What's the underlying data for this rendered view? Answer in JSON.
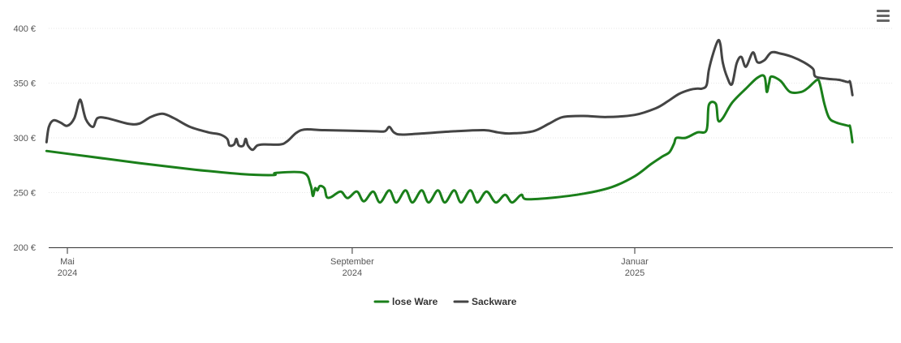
{
  "menu_icon": "hamburger-menu-icon",
  "colors": {
    "lose_ware": "#1a7f1a",
    "sackware": "#444444",
    "grid": "#e6e6e6",
    "axis": "#333333"
  },
  "chart_data": {
    "type": "line",
    "title": "",
    "xlabel": "",
    "ylabel": "",
    "ylim": [
      200,
      400
    ],
    "yticks": [
      {
        "value": 200,
        "label": "200 €"
      },
      {
        "value": 250,
        "label": "250 €"
      },
      {
        "value": 300,
        "label": "300 €"
      },
      {
        "value": 350,
        "label": "350 €"
      },
      {
        "value": 400,
        "label": "400 €"
      }
    ],
    "xlim": [
      "2024-04-22",
      "2025-03-26"
    ],
    "xticks": [
      {
        "date": "2024-05-01",
        "line1": "Mai",
        "line2": "2024"
      },
      {
        "date": "2024-09-01",
        "line1": "September",
        "line2": "2024"
      },
      {
        "date": "2025-01-01",
        "line1": "Januar",
        "line2": "2025"
      }
    ],
    "grid": true,
    "legend_position": "bottom-center",
    "series": [
      {
        "name": "lose Ware",
        "color": "#1a7f1a",
        "points": [
          [
            "2024-04-22",
            288
          ],
          [
            "2024-05-10",
            283
          ],
          [
            "2024-06-01",
            277
          ],
          [
            "2024-06-25",
            271
          ],
          [
            "2024-07-15",
            267
          ],
          [
            "2024-07-29",
            266
          ],
          [
            "2024-07-30",
            268
          ],
          [
            "2024-08-11",
            268
          ],
          [
            "2024-08-14",
            257
          ],
          [
            "2024-08-15",
            247
          ],
          [
            "2024-08-16",
            254
          ],
          [
            "2024-08-17",
            252
          ],
          [
            "2024-08-18",
            256
          ],
          [
            "2024-08-20",
            254
          ],
          [
            "2024-08-21",
            246
          ],
          [
            "2024-08-23",
            246
          ],
          [
            "2024-08-27",
            251
          ],
          [
            "2024-08-30",
            245
          ],
          [
            "2024-09-03",
            251
          ],
          [
            "2024-09-06",
            242
          ],
          [
            "2024-09-10",
            251
          ],
          [
            "2024-09-13",
            241
          ],
          [
            "2024-09-17",
            252
          ],
          [
            "2024-09-20",
            241
          ],
          [
            "2024-09-24",
            252
          ],
          [
            "2024-09-27",
            241
          ],
          [
            "2024-10-01",
            252
          ],
          [
            "2024-10-04",
            241
          ],
          [
            "2024-10-08",
            252
          ],
          [
            "2024-10-11",
            241
          ],
          [
            "2024-10-15",
            252
          ],
          [
            "2024-10-18",
            241
          ],
          [
            "2024-10-22",
            252
          ],
          [
            "2024-10-25",
            241
          ],
          [
            "2024-10-29",
            251
          ],
          [
            "2024-11-02",
            241
          ],
          [
            "2024-11-06",
            248
          ],
          [
            "2024-11-09",
            241
          ],
          [
            "2024-11-13",
            248
          ],
          [
            "2024-11-15",
            244
          ],
          [
            "2024-11-25",
            245
          ],
          [
            "2024-12-10",
            249
          ],
          [
            "2024-12-22",
            255
          ],
          [
            "2025-01-01",
            265
          ],
          [
            "2025-01-08",
            276
          ],
          [
            "2025-01-13",
            283
          ],
          [
            "2025-01-16",
            287
          ],
          [
            "2025-01-18",
            295
          ],
          [
            "2025-01-19",
            300
          ],
          [
            "2025-01-23",
            300
          ],
          [
            "2025-01-28",
            305
          ],
          [
            "2025-02-01",
            307
          ],
          [
            "2025-02-02",
            330
          ],
          [
            "2025-02-05",
            331
          ],
          [
            "2025-02-06",
            316
          ],
          [
            "2025-02-08",
            318
          ],
          [
            "2025-02-12",
            332
          ],
          [
            "2025-02-18",
            345
          ],
          [
            "2025-02-23",
            355
          ],
          [
            "2025-02-26",
            356
          ],
          [
            "2025-02-27",
            342
          ],
          [
            "2025-02-28",
            350
          ],
          [
            "2025-03-01",
            356
          ],
          [
            "2025-03-05",
            352
          ],
          [
            "2025-03-09",
            342
          ],
          [
            "2025-03-14",
            342
          ],
          [
            "2025-03-17",
            346
          ],
          [
            "2025-03-19",
            350
          ],
          [
            "2025-03-21",
            353
          ],
          [
            "2025-03-22",
            349
          ],
          [
            "2025-03-24",
            330
          ],
          [
            "2025-03-26",
            318
          ],
          [
            "2025-03-29",
            314
          ],
          [
            "2025-04-03",
            311
          ],
          [
            "2025-04-04",
            310
          ],
          [
            "2025-04-05",
            296
          ]
        ]
      },
      {
        "name": "Sackware",
        "color": "#444444",
        "points": [
          [
            "2024-04-22",
            296
          ],
          [
            "2024-04-23",
            310
          ],
          [
            "2024-04-25",
            316
          ],
          [
            "2024-04-28",
            314
          ],
          [
            "2024-05-01",
            311
          ],
          [
            "2024-05-04",
            318
          ],
          [
            "2024-05-06",
            333
          ],
          [
            "2024-05-07",
            333
          ],
          [
            "2024-05-09",
            317
          ],
          [
            "2024-05-12",
            310
          ],
          [
            "2024-05-14",
            318
          ],
          [
            "2024-05-18",
            318
          ],
          [
            "2024-05-27",
            313
          ],
          [
            "2024-06-01",
            313
          ],
          [
            "2024-06-06",
            319
          ],
          [
            "2024-06-11",
            322
          ],
          [
            "2024-06-16",
            318
          ],
          [
            "2024-06-23",
            310
          ],
          [
            "2024-07-01",
            305
          ],
          [
            "2024-07-06",
            303
          ],
          [
            "2024-07-09",
            299
          ],
          [
            "2024-07-10",
            293
          ],
          [
            "2024-07-12",
            294
          ],
          [
            "2024-07-13",
            299
          ],
          [
            "2024-07-14",
            293
          ],
          [
            "2024-07-16",
            293
          ],
          [
            "2024-07-17",
            299
          ],
          [
            "2024-07-18",
            293
          ],
          [
            "2024-07-20",
            289
          ],
          [
            "2024-07-22",
            293
          ],
          [
            "2024-07-25",
            294
          ],
          [
            "2024-08-01",
            294
          ],
          [
            "2024-08-04",
            297
          ],
          [
            "2024-08-10",
            307
          ],
          [
            "2024-08-20",
            307
          ],
          [
            "2024-09-10",
            306
          ],
          [
            "2024-09-15",
            306
          ],
          [
            "2024-09-17",
            310
          ],
          [
            "2024-09-19",
            305
          ],
          [
            "2024-09-22",
            303
          ],
          [
            "2024-10-01",
            304
          ],
          [
            "2024-10-15",
            306
          ],
          [
            "2024-10-28",
            307
          ],
          [
            "2024-11-03",
            305
          ],
          [
            "2024-11-08",
            304
          ],
          [
            "2024-11-18",
            306
          ],
          [
            "2024-11-25",
            313
          ],
          [
            "2024-12-01",
            319
          ],
          [
            "2024-12-10",
            320
          ],
          [
            "2024-12-20",
            319
          ],
          [
            "2025-01-01",
            321
          ],
          [
            "2025-01-10",
            327
          ],
          [
            "2025-01-15",
            333
          ],
          [
            "2025-01-20",
            340
          ],
          [
            "2025-01-25",
            344
          ],
          [
            "2025-01-28",
            345
          ],
          [
            "2025-01-30",
            345
          ],
          [
            "2025-02-01",
            348
          ],
          [
            "2025-02-02",
            362
          ],
          [
            "2025-02-04",
            378
          ],
          [
            "2025-02-06",
            389
          ],
          [
            "2025-02-07",
            385
          ],
          [
            "2025-02-08",
            369
          ],
          [
            "2025-02-10",
            355
          ],
          [
            "2025-02-12",
            349
          ],
          [
            "2025-02-14",
            368
          ],
          [
            "2025-02-16",
            374
          ],
          [
            "2025-02-18",
            365
          ],
          [
            "2025-02-21",
            378
          ],
          [
            "2025-02-23",
            369
          ],
          [
            "2025-02-26",
            371
          ],
          [
            "2025-03-01",
            378
          ],
          [
            "2025-03-05",
            377
          ],
          [
            "2025-03-10",
            374
          ],
          [
            "2025-03-15",
            369
          ],
          [
            "2025-03-19",
            363
          ],
          [
            "2025-03-20",
            356
          ],
          [
            "2025-03-25",
            354
          ],
          [
            "2025-03-30",
            353
          ],
          [
            "2025-04-03",
            351
          ],
          [
            "2025-04-04",
            351
          ],
          [
            "2025-04-05",
            339
          ]
        ]
      }
    ]
  }
}
